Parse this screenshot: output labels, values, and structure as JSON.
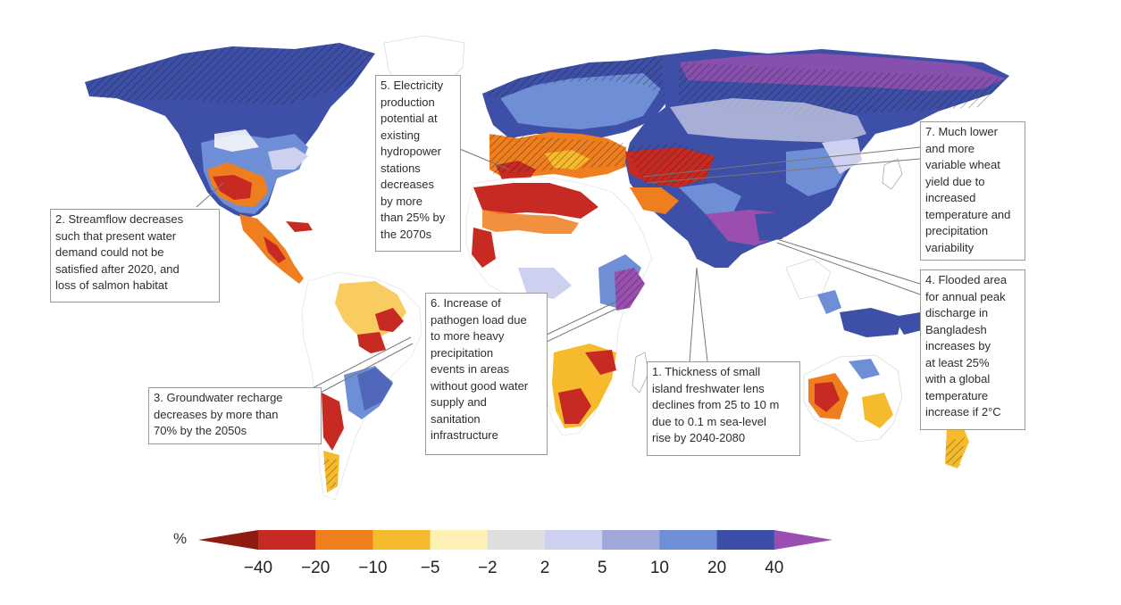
{
  "legend": {
    "unit": "%",
    "ticks": [
      "−40",
      "−20",
      "−10",
      "−5",
      "−2",
      "2",
      "5",
      "10",
      "20",
      "40"
    ],
    "colors": [
      "#8f1a12",
      "#c62a22",
      "#ef7e1e",
      "#f6bb2c",
      "#fdf0b4",
      "#dedede",
      "#cdd0ee",
      "#9fa7db",
      "#6e8fd6",
      "#3b4ea8",
      "#9a4fb0"
    ]
  },
  "callouts": [
    {
      "id": "5",
      "text": "5. Electricity\nproduction\npotential at\nexisting\nhydropower\nstations\ndecreases\nby more\nthan 25% by\nthe 2070s"
    },
    {
      "id": "7",
      "text": "7. Much lower\nand more\nvariable wheat\nyield due to\nincreased\ntemperature and\nprecipitation\nvariability"
    },
    {
      "id": "2",
      "text": "2. Streamflow decreases\nsuch that present water\ndemand could not be\nsatisfied after 2020, and\nloss of salmon habitat"
    },
    {
      "id": "4",
      "text": "4. Flooded area\nfor annual peak\ndischarge in\nBangladesh\nincreases by\nat least 25%\nwith a global\ntemperature\nincrease if 2°C"
    },
    {
      "id": "6",
      "text": "6. Increase of\npathogen load due\nto more heavy\nprecipitation\nevents in areas\nwithout good water\nsupply and\nsanitation\ninfrastructure"
    },
    {
      "id": "3",
      "text": "3. Groundwater recharge\ndecreases by more than\n70% by the 2050s"
    },
    {
      "id": "1",
      "text": "1. Thickness of small\nisland freshwater lens\ndeclines from 25 to 10 m\ndue to 0.1 m sea-level\nrise by 2040-2080"
    }
  ]
}
